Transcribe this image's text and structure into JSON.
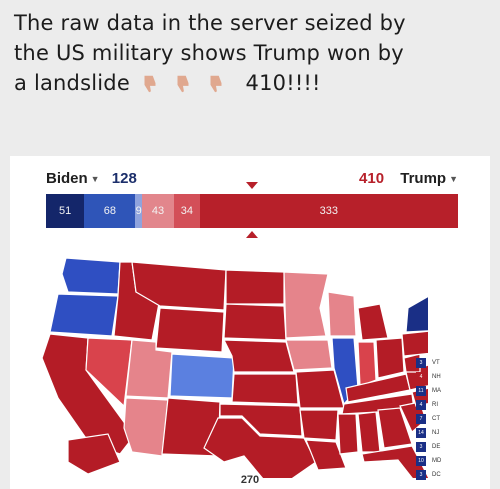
{
  "headline": {
    "line1": "The raw data in the server seized by",
    "line2": "the US military shows Trump won by",
    "line3_prefix": "a landslide",
    "line3_suffix": "410!!!!",
    "emoji_icon": "thumbs-down-icon"
  },
  "tally": {
    "biden_label": "Biden",
    "biden_total": "128",
    "trump_total": "410",
    "trump_label": "Trump"
  },
  "bar": {
    "segments": [
      {
        "label": "51",
        "color": "#14266a",
        "share": 0.093
      },
      {
        "label": "68",
        "color": "#2f55b8",
        "share": 0.124
      },
      {
        "label": "9",
        "color": "#8fa3dd",
        "share": 0.016
      },
      {
        "label": "43",
        "color": "#e2868c",
        "share": 0.078
      },
      {
        "label": "34",
        "color": "#d34f58",
        "share": 0.062
      },
      {
        "label": "333",
        "color": "#b7202a",
        "share": 0.627
      }
    ]
  },
  "map": {
    "threshold": "270",
    "colors": {
      "safe_dem": "#1a2f86",
      "likely_dem": "#3d57c7",
      "lean_dem": "#6d8fd6",
      "lean_rep": "#e5848b",
      "likely_rep": "#d9434c",
      "safe_rep": "#b41c26",
      "border": "#ffffff"
    },
    "small_states": [
      {
        "code": "VT",
        "votes": "3",
        "color": "#1a2f86"
      },
      {
        "code": "NH",
        "votes": "4",
        "color": "#b41c26"
      },
      {
        "code": "MA",
        "votes": "11",
        "color": "#1a2f86"
      },
      {
        "code": "RI",
        "votes": "4",
        "color": "#1a2f86"
      },
      {
        "code": "CT",
        "votes": "7",
        "color": "#1a2f86"
      },
      {
        "code": "NJ",
        "votes": "14",
        "color": "#1a2f86"
      },
      {
        "code": "DE",
        "votes": "3",
        "color": "#1a2f86"
      },
      {
        "code": "MD",
        "votes": "10",
        "color": "#1a2f86"
      },
      {
        "code": "DC",
        "votes": "3",
        "color": "#1a2f86"
      }
    ]
  }
}
